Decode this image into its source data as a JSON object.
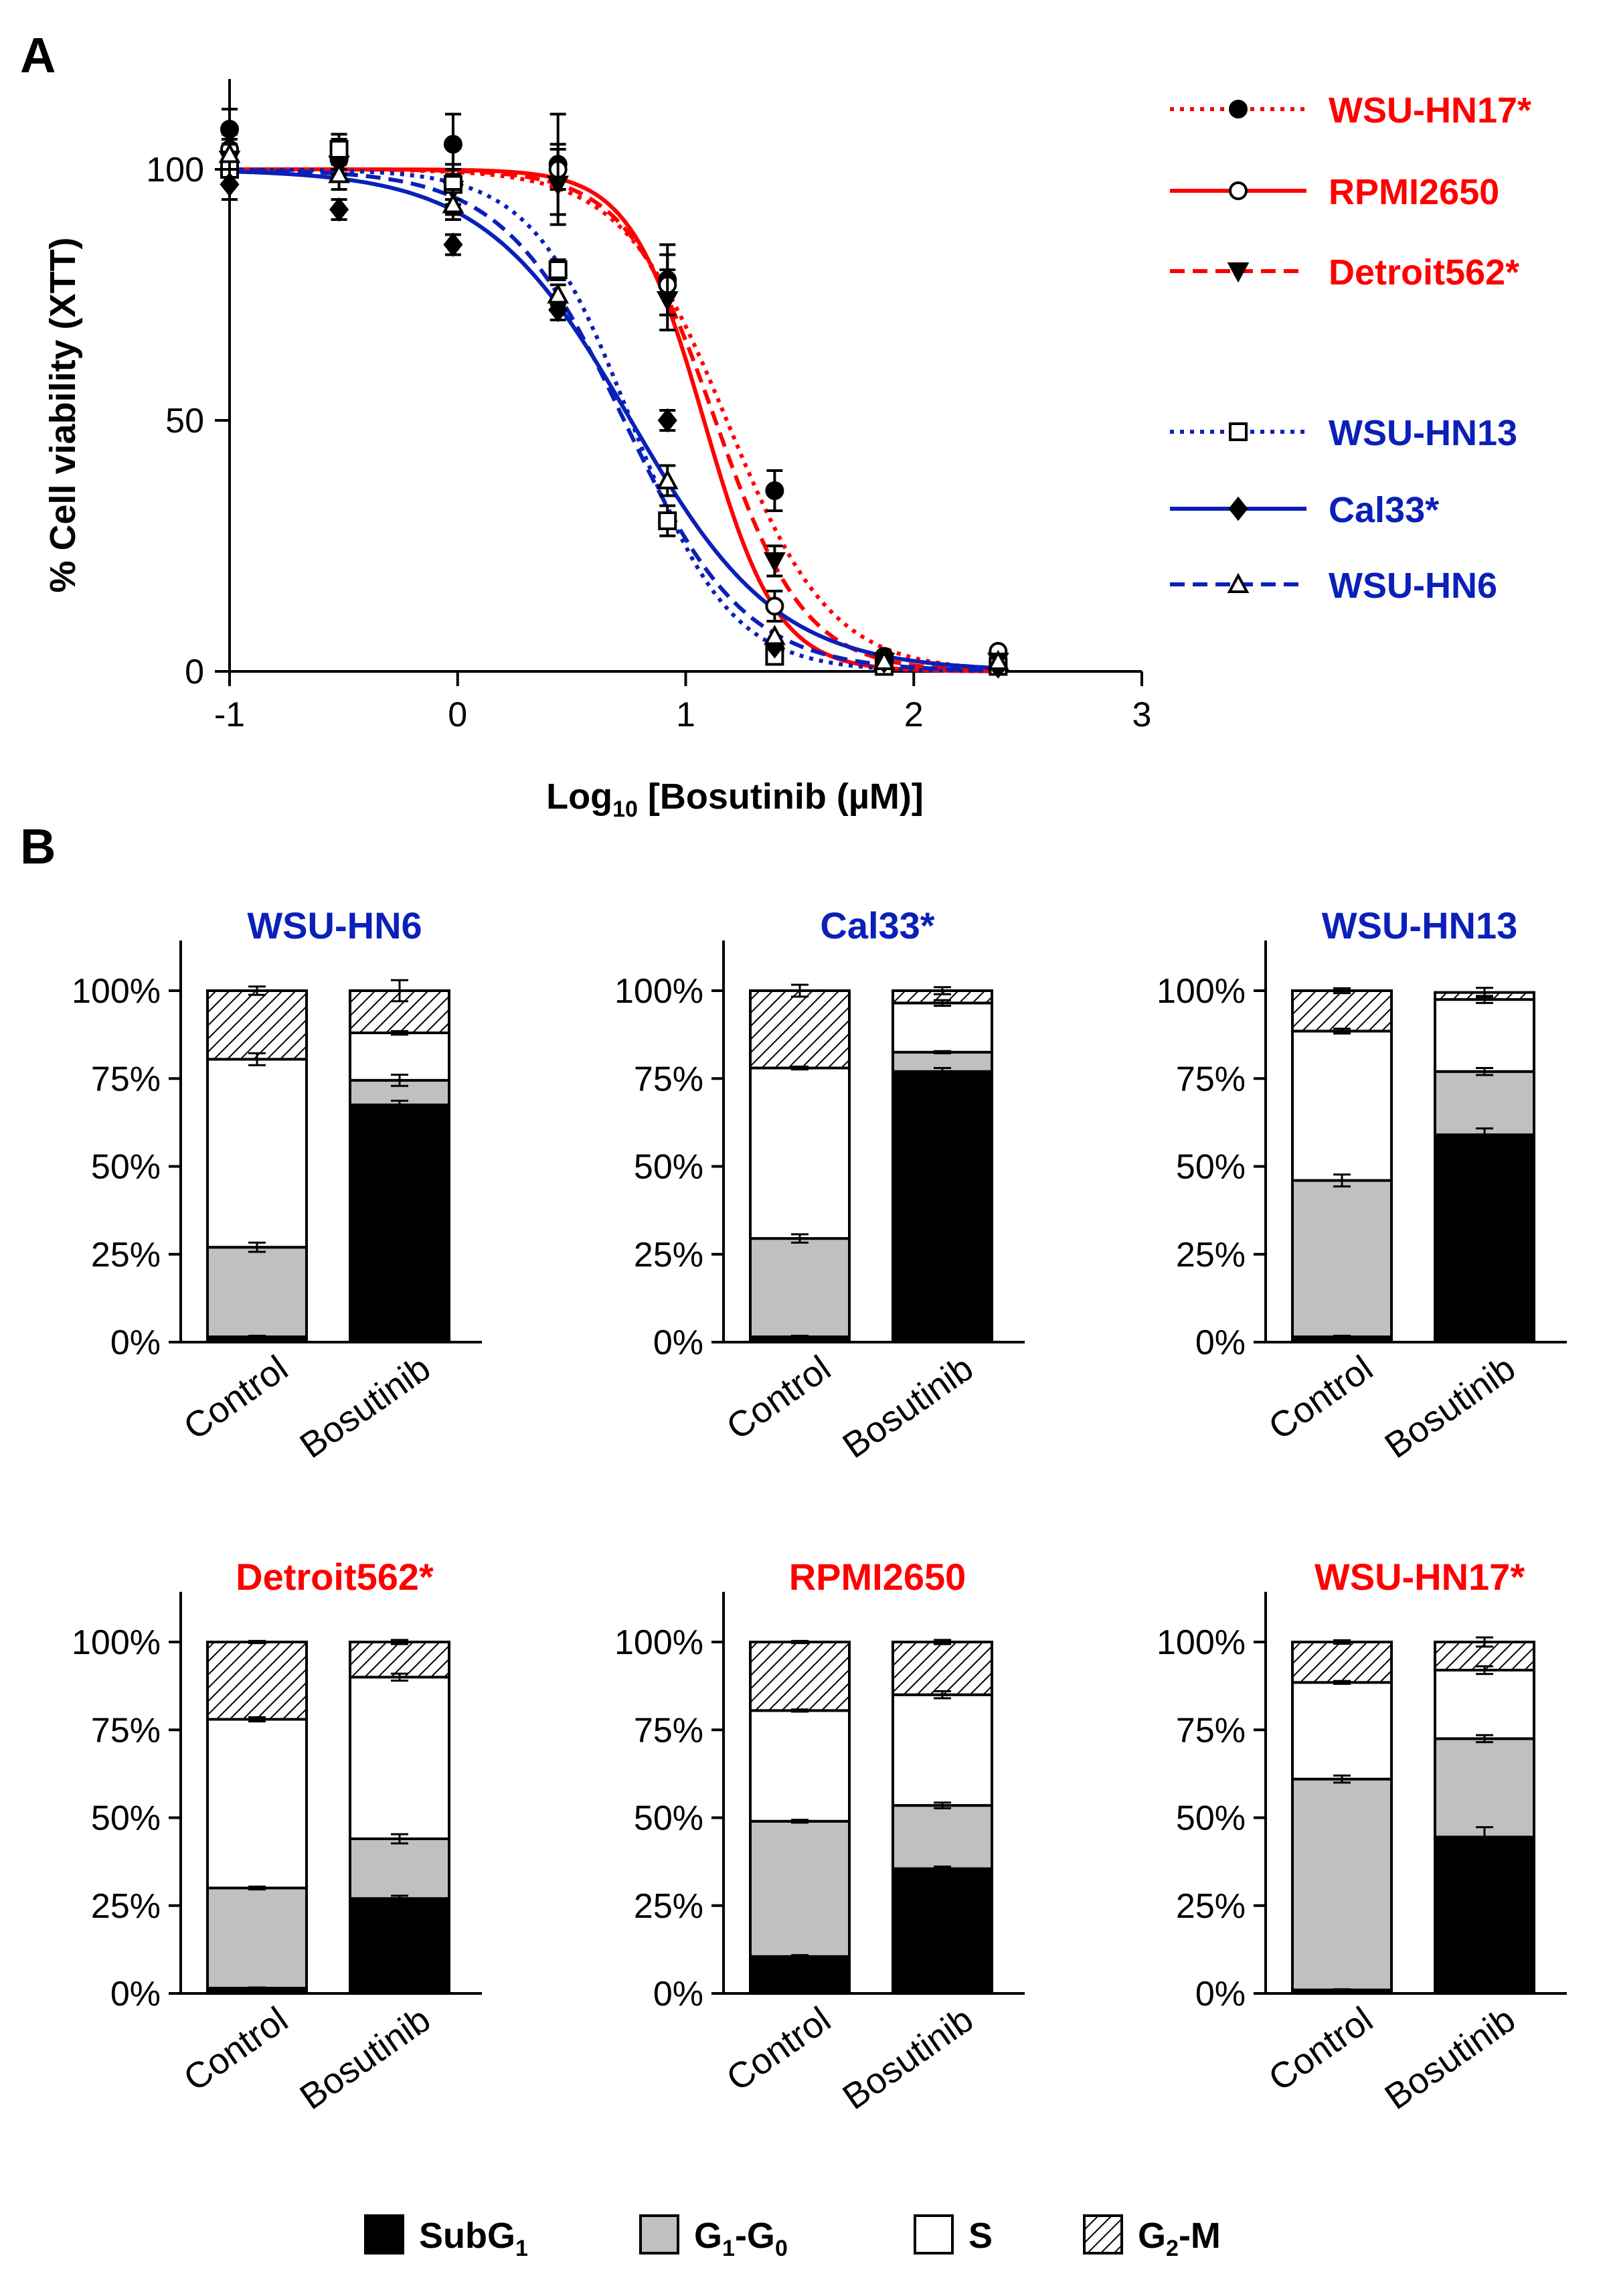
{
  "panel_labels": {
    "a": "A",
    "b": "B"
  },
  "colors": {
    "red": "#ff0000",
    "blue": "#0b20b8",
    "black": "#000000",
    "gray": "#c0c0c0",
    "white": "#ffffff"
  },
  "chart_data": [
    {
      "type": "line",
      "title": "",
      "xlabel_main": "Log",
      "xlabel_sub": "10",
      "xlabel_rest": " [Bosutinib (µM)]",
      "ylabel": "% Cell viability (XTT)",
      "xlim": [
        -1,
        3
      ],
      "ylim": [
        0,
        118
      ],
      "xticks": [
        -1,
        0,
        1,
        2,
        3
      ],
      "xtick_labels": [
        "-1",
        "0",
        "1",
        "2",
        "3"
      ],
      "yticks": [
        0,
        50,
        100
      ],
      "ytick_labels": [
        "0",
        "50",
        "100"
      ],
      "x": [
        -1,
        -0.52,
        -0.02,
        0.44,
        0.92,
        1.39,
        1.87,
        2.37
      ],
      "series": [
        {
          "name": "WSU-HN17*",
          "color_key": "red",
          "line": "dotted",
          "marker": "circle-filled",
          "values": [
            108,
            102,
            105,
            101,
            78,
            36,
            3,
            2
          ],
          "errors": [
            4,
            3,
            6,
            10,
            7,
            4,
            1,
            1
          ],
          "ic50": 1.18,
          "hill": 1.9
        },
        {
          "name": "RPMI2650",
          "color_key": "red",
          "line": "solid",
          "marker": "circle-open",
          "values": [
            104,
            103,
            97,
            100,
            77,
            13,
            2,
            4
          ],
          "errors": [
            3,
            3,
            4,
            4,
            6,
            3,
            1,
            1
          ],
          "ic50": 1.08,
          "hill": 2.7
        },
        {
          "name": "Detroit562*",
          "color_key": "red",
          "line": "dashed",
          "marker": "triangle-down",
          "values": [
            102,
            101,
            96,
            97,
            74,
            22,
            2,
            2
          ],
          "errors": [
            3,
            3,
            5,
            8,
            6,
            3,
            1,
            1
          ],
          "ic50": 1.13,
          "hill": 2.2
        },
        {
          "name": "WSU-HN13",
          "color_key": "blue",
          "line": "dotted",
          "marker": "square-open",
          "values": [
            100,
            104,
            97,
            80,
            30,
            3,
            1,
            1
          ],
          "errors": [
            3,
            3,
            3,
            2,
            3,
            1,
            1,
            1
          ],
          "ic50": 0.76,
          "hill": 2.0
        },
        {
          "name": "Cal33*",
          "color_key": "blue",
          "line": "solid",
          "marker": "diamond",
          "values": [
            97,
            92,
            85,
            72,
            50,
            5,
            2,
            1
          ],
          "errors": [
            3,
            2,
            2,
            2,
            2,
            1,
            1,
            1
          ],
          "ic50": 0.76,
          "hill": 1.35
        },
        {
          "name": "WSU-HN6",
          "color_key": "blue",
          "line": "dashed",
          "marker": "triangle-up",
          "values": [
            103,
            99,
            93,
            75,
            38,
            7,
            2,
            2
          ],
          "errors": [
            3,
            3,
            3,
            2,
            3,
            1,
            1,
            1
          ],
          "ic50": 0.73,
          "hill": 1.65
        }
      ]
    },
    {
      "type": "bar",
      "stacked": true,
      "ylim": [
        0,
        100
      ],
      "ytick_labels": [
        "0%",
        "25%",
        "50%",
        "75%",
        "100%"
      ],
      "categories": [
        "Control",
        "Bosutinib"
      ],
      "legend": [
        {
          "name": "SubG",
          "sub": "1",
          "fill_key": "black"
        },
        {
          "name": "G",
          "sub": "1",
          "name2": "-G",
          "sub2": "0",
          "fill_key": "gray"
        },
        {
          "name": "S",
          "fill_key": "white"
        },
        {
          "name": "G",
          "sub": "2",
          "name2": "-M",
          "fill_key": "hatch"
        }
      ],
      "panels": [
        {
          "title": "WSU-HN6",
          "color_key": "blue",
          "bars": [
            {
              "subg1": 1.5,
              "g1g0": 25.5,
              "s": 53.5,
              "g2m": 19.5,
              "errors": [
                0.3,
                1.3,
                1.7,
                1.2
              ]
            },
            {
              "subg1": 67.5,
              "g1g0": 7.0,
              "s": 13.5,
              "g2m": 12.0,
              "errors": [
                1.2,
                1.6,
                0.5,
                3.0
              ]
            }
          ]
        },
        {
          "title": "Cal33*",
          "color_key": "blue",
          "bars": [
            {
              "subg1": 1.5,
              "g1g0": 28.0,
              "s": 48.5,
              "g2m": 22.0,
              "errors": [
                0.3,
                1.2,
                0.4,
                1.7
              ]
            },
            {
              "subg1": 77.0,
              "g1g0": 5.5,
              "s": 14.0,
              "g2m": 3.5,
              "errors": [
                1.0,
                0.3,
                0.8,
                1.0
              ]
            }
          ]
        },
        {
          "title": "WSU-HN13",
          "color_key": "blue",
          "bars": [
            {
              "subg1": 1.5,
              "g1g0": 44.5,
              "s": 42.5,
              "g2m": 11.5,
              "errors": [
                0.3,
                1.7,
                0.7,
                0.7
              ]
            },
            {
              "subg1": 59.0,
              "g1g0": 18.0,
              "s": 20.5,
              "g2m": 2.0,
              "errors": [
                1.8,
                1.0,
                1.0,
                1.3
              ]
            }
          ]
        },
        {
          "title": "Detroit562*",
          "color_key": "red",
          "bars": [
            {
              "subg1": 1.5,
              "g1g0": 28.5,
              "s": 48.0,
              "g2m": 22.0,
              "errors": [
                0.2,
                0.4,
                0.6,
                0.3
              ]
            },
            {
              "subg1": 27.0,
              "g1g0": 17.0,
              "s": 46.0,
              "g2m": 10.0,
              "errors": [
                0.8,
                1.3,
                1.0,
                0.6
              ]
            }
          ]
        },
        {
          "title": "RPMI2650",
          "color_key": "red",
          "bars": [
            {
              "subg1": 10.5,
              "g1g0": 38.5,
              "s": 31.5,
              "g2m": 19.5,
              "errors": [
                0.4,
                0.4,
                0.3,
                0.3
              ]
            },
            {
              "subg1": 35.5,
              "g1g0": 18.0,
              "s": 31.5,
              "g2m": 15.0,
              "errors": [
                0.6,
                0.8,
                1.0,
                0.6
              ]
            }
          ]
        },
        {
          "title": "WSU-HN17*",
          "color_key": "red",
          "bars": [
            {
              "subg1": 1.0,
              "g1g0": 60.0,
              "s": 27.5,
              "g2m": 11.5,
              "errors": [
                0.2,
                1.0,
                0.4,
                0.5
              ]
            },
            {
              "subg1": 44.5,
              "g1g0": 28.0,
              "s": 19.5,
              "g2m": 8.0,
              "errors": [
                2.8,
                1.0,
                1.1,
                1.3
              ]
            }
          ]
        }
      ]
    }
  ]
}
